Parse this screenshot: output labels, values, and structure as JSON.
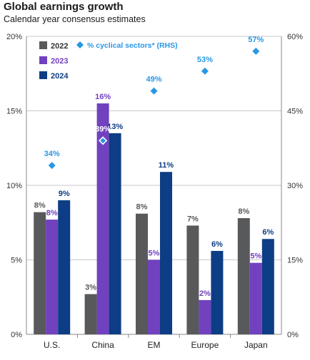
{
  "title": "Global earnings growth",
  "subtitle": "Calendar year consensus estimates",
  "chart_data": {
    "type": "bar",
    "categories": [
      "U.S.",
      "China",
      "EM",
      "Europe",
      "Japan"
    ],
    "series": [
      {
        "name": "2022",
        "color": "#58595b",
        "values": [
          8,
          3,
          8,
          7,
          8
        ]
      },
      {
        "name": "2023",
        "color": "#7141bf",
        "values": [
          8,
          16,
          5,
          2,
          5
        ]
      },
      {
        "name": "2024",
        "color": "#0d3d84",
        "values": [
          9,
          13,
          11,
          6,
          6
        ]
      }
    ],
    "bar_heights_exact": {
      "2022": [
        8.2,
        2.7,
        8.1,
        7.3,
        7.8
      ],
      "2023": [
        7.7,
        15.5,
        5.0,
        2.3,
        4.8
      ],
      "2024": [
        9.0,
        13.5,
        10.9,
        5.6,
        6.4
      ]
    },
    "secondary_series": {
      "name": "% cyclical sectors* (RHS)",
      "color": "#2897e6",
      "marker": "diamond",
      "values": [
        34,
        39,
        49,
        53,
        57
      ],
      "labels": [
        "34%",
        "39%",
        "49%",
        "53%",
        "57%"
      ]
    },
    "y_left": {
      "min": 0,
      "max": 20,
      "ticks": [
        0,
        5,
        10,
        15,
        20
      ],
      "tick_labels": [
        "0%",
        "5%",
        "10%",
        "15%",
        "20%"
      ]
    },
    "y_right": {
      "min": 0,
      "max": 60,
      "ticks": [
        0,
        15,
        30,
        45,
        60
      ],
      "tick_labels": [
        "0%",
        "15%",
        "30%",
        "45%",
        "60%"
      ]
    },
    "data_label_suffix": "%",
    "grid": true,
    "legend_position": "top-left",
    "xlabel": "",
    "ylabel": ""
  }
}
